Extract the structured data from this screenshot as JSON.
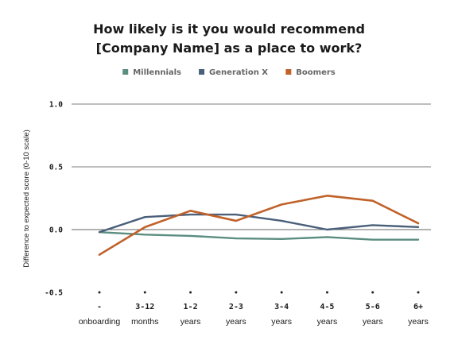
{
  "chart_data": {
    "type": "line",
    "title": [
      "How likely is it you would recommend",
      "[Company Name] as a place to work?"
    ],
    "xlabel": "",
    "ylabel": "Difference to expected score (0-10 scale)",
    "ylim": [
      -0.5,
      1.0
    ],
    "yticks": [
      "1.0",
      "0.5",
      "0.0",
      "-0.5"
    ],
    "yticks_values": [
      1.0,
      0.5,
      0.0,
      -0.5
    ],
    "categories": [
      {
        "line1": "-",
        "line2": "onboarding"
      },
      {
        "line1": "3-12",
        "line2": "months"
      },
      {
        "line1": "1-2",
        "line2": "years"
      },
      {
        "line1": "2-3",
        "line2": "years"
      },
      {
        "line1": "3-4",
        "line2": "years"
      },
      {
        "line1": "4-5",
        "line2": "years"
      },
      {
        "line1": "5-6",
        "line2": "years"
      },
      {
        "line1": "6+",
        "line2": "years"
      }
    ],
    "series": [
      {
        "name": "Millennials",
        "color": "#5b8d80",
        "values": [
          -0.02,
          -0.04,
          -0.05,
          -0.07,
          -0.075,
          -0.06,
          -0.08,
          -0.08
        ]
      },
      {
        "name": "Generation X",
        "color": "#4a5f7a",
        "values": [
          -0.02,
          0.1,
          0.12,
          0.12,
          0.07,
          0.0,
          0.035,
          0.02
        ]
      },
      {
        "name": "Boomers",
        "color": "#c0622a",
        "values": [
          -0.2,
          0.02,
          0.15,
          0.07,
          0.2,
          0.27,
          0.23,
          0.05
        ]
      }
    ],
    "legend_position": "top-center",
    "grid": true
  }
}
